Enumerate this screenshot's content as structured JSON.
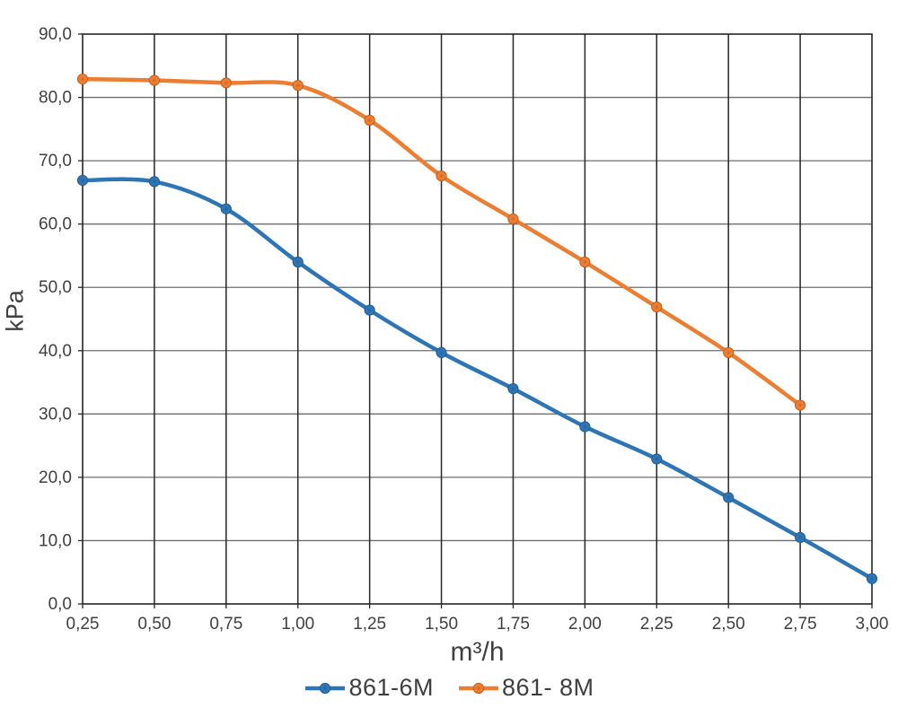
{
  "chart_data": {
    "type": "line",
    "title": "",
    "xlabel": "m³/h",
    "ylabel": "kPa",
    "xlim": [
      0.25,
      3.0
    ],
    "ylim": [
      0,
      90
    ],
    "x_step": 0.25,
    "y_step": 10,
    "grid": true,
    "smooth_lines": true,
    "legend_position": "bottom",
    "x_tick_labels": [
      "0,25",
      "0,50",
      "0,75",
      "1,00",
      "1,25",
      "1,50",
      "1,75",
      "2,00",
      "2,25",
      "2,50",
      "2,75",
      "3,00"
    ],
    "y_tick_labels": [
      "0,0",
      "10,0",
      "20,0",
      "30,0",
      "40,0",
      "50,0",
      "60,0",
      "70,0",
      "80,0",
      "90,0"
    ],
    "series": [
      {
        "name": "861-6M",
        "color": "#2E75B6",
        "marker_stroke": "#235d92",
        "x": [
          0.25,
          0.5,
          0.75,
          1.0,
          1.25,
          1.5,
          1.75,
          2.0,
          2.25,
          2.5,
          2.75,
          3.0
        ],
        "values": [
          66.9,
          66.7,
          62.4,
          54.0,
          46.4,
          39.7,
          34.0,
          28.0,
          22.9,
          16.8,
          10.5,
          4.0
        ]
      },
      {
        "name": "861- 8M",
        "color": "#ED7D31",
        "marker_stroke": "#c05f1d",
        "x": [
          0.25,
          0.5,
          0.75,
          1.0,
          1.25,
          1.5,
          1.75,
          2.0,
          2.25,
          2.5,
          2.75
        ],
        "values": [
          82.9,
          82.7,
          82.3,
          81.9,
          76.4,
          67.6,
          60.8,
          54.0,
          46.9,
          39.7,
          31.4
        ]
      }
    ],
    "colors": {
      "axis_text": "#3f3f3f",
      "grid_h": "#6e6e6e",
      "grid_v": "#262626",
      "border": "#262626",
      "background": "#ffffff"
    }
  }
}
